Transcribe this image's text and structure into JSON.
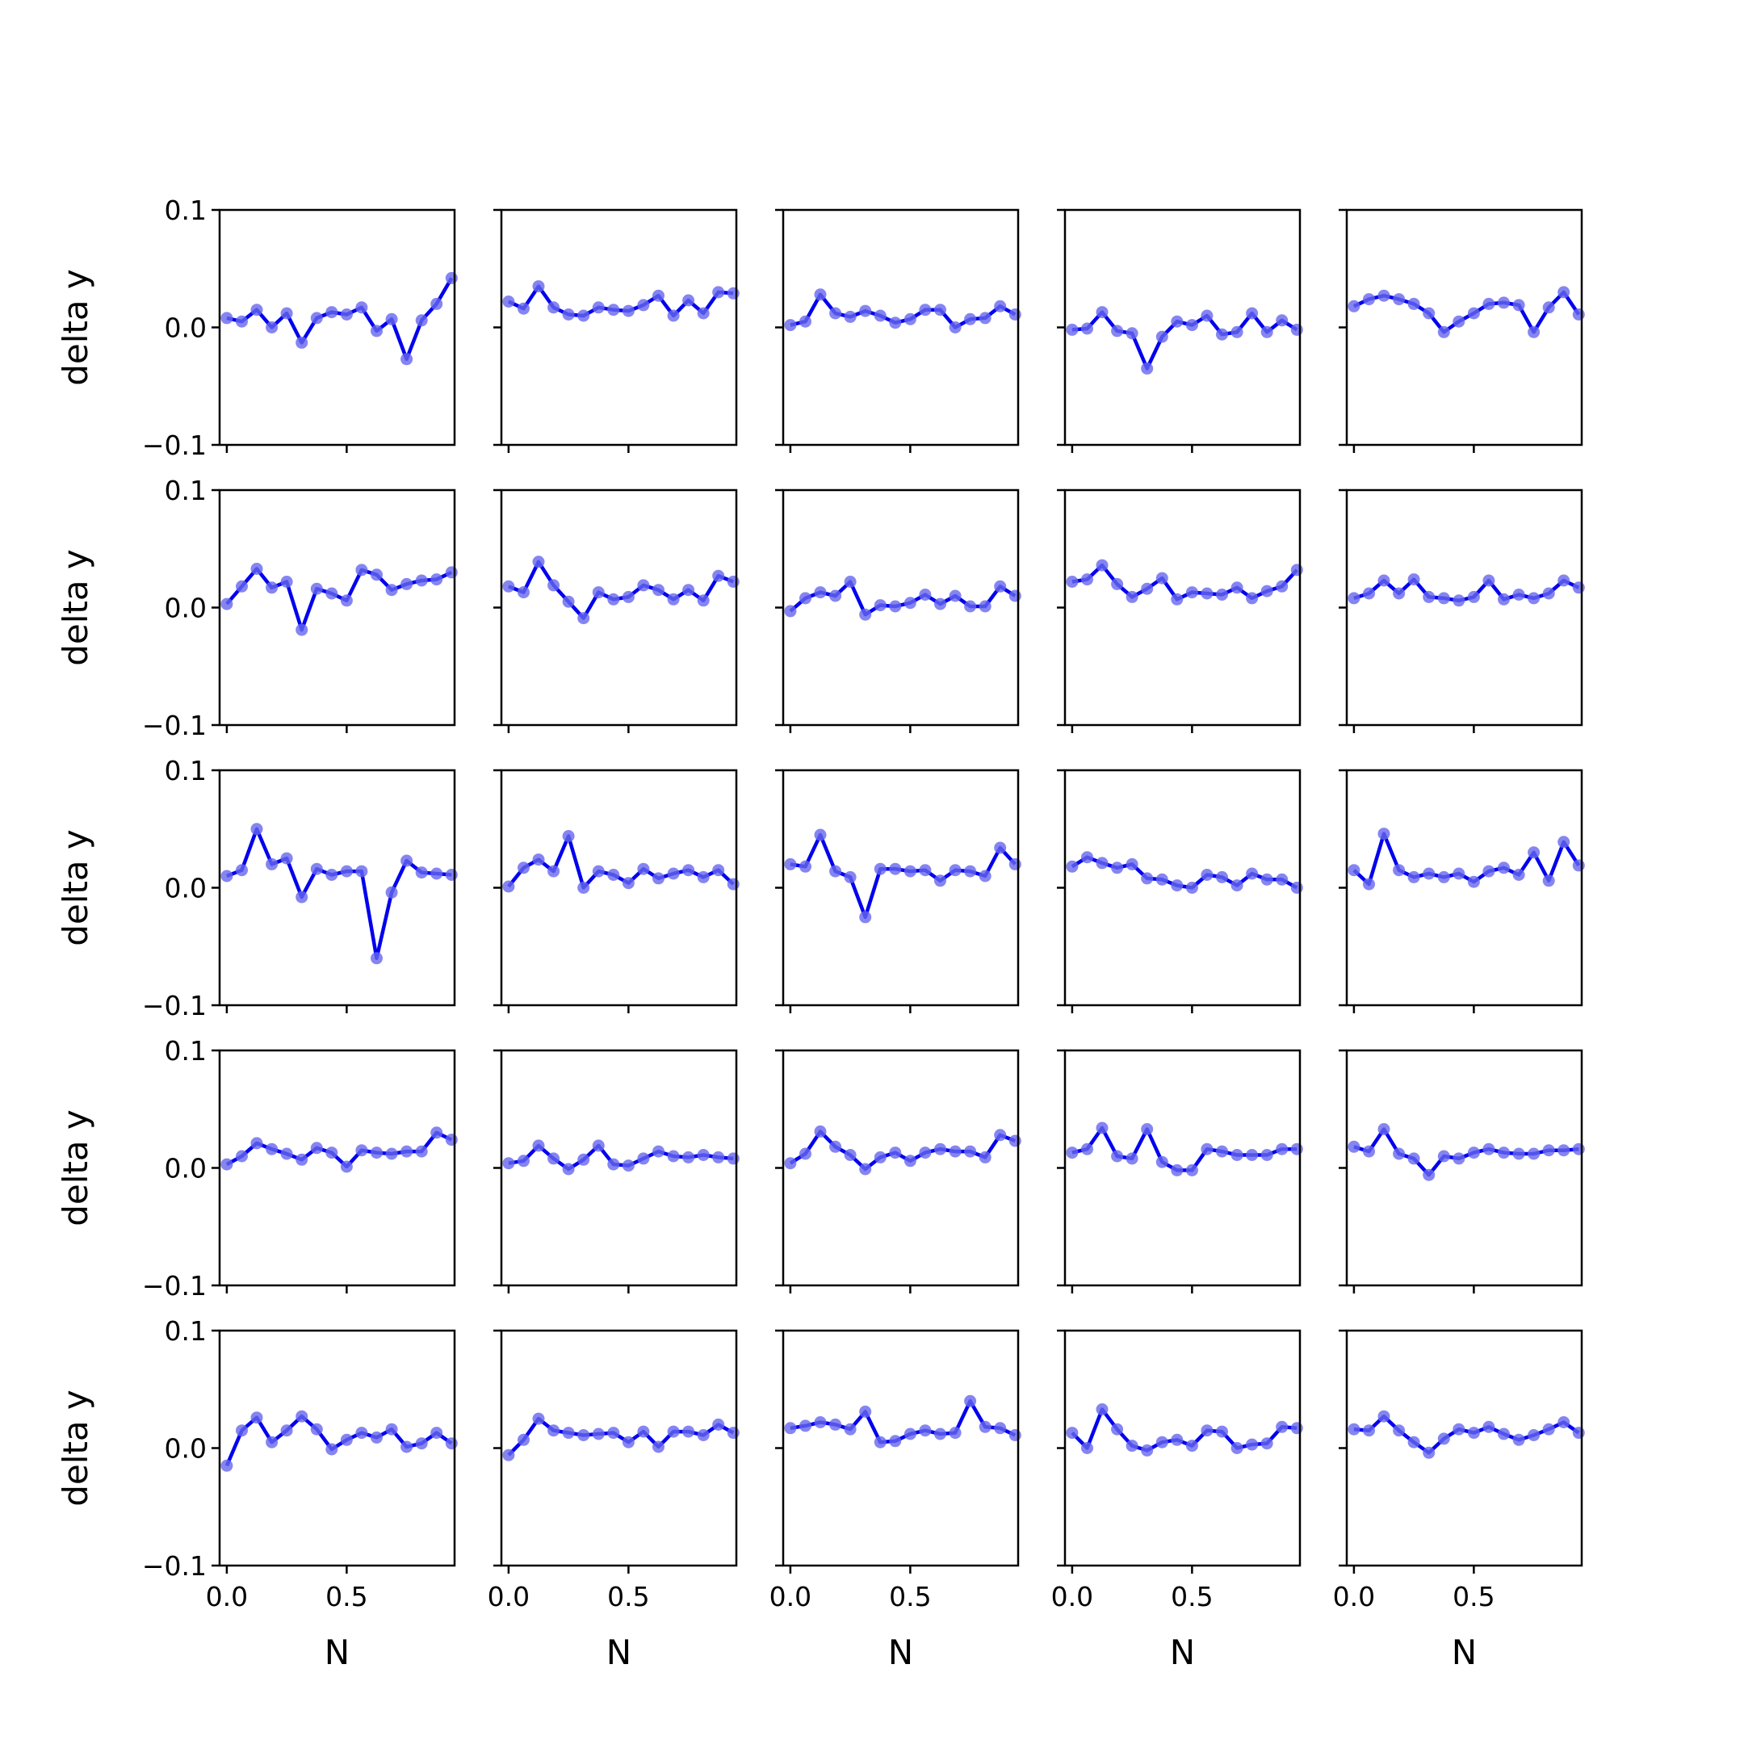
{
  "figure": {
    "rows": 5,
    "cols": 5,
    "line_color": "#0000ee",
    "marker_color": "#6666ee",
    "background": "#ffffff"
  },
  "chart_data": {
    "type": "line",
    "layout": "5x5 grid of small line plots with markers, shared axes",
    "xlabel": "N",
    "ylabel": "delta y",
    "xlim": [
      -0.03,
      0.95
    ],
    "ylim": [
      -0.1,
      0.1
    ],
    "xticks": [
      0.0,
      0.5
    ],
    "xtick_labels": [
      "0.0",
      "0.5"
    ],
    "yticks": [
      -0.1,
      0.0,
      0.1
    ],
    "ytick_labels": [
      "−0.1",
      "0.0",
      "0.1"
    ],
    "grid": false,
    "legend": false,
    "x": [
      0.0,
      0.0625,
      0.125,
      0.1875,
      0.25,
      0.3125,
      0.375,
      0.4375,
      0.5,
      0.5625,
      0.625,
      0.6875,
      0.75,
      0.8125,
      0.875,
      0.9375
    ],
    "panels": [
      {
        "row": 0,
        "col": 0,
        "y": [
          0.008,
          0.005,
          0.015,
          0.0,
          0.012,
          -0.013,
          0.008,
          0.013,
          0.011,
          0.017,
          -0.003,
          0.007,
          -0.027,
          0.006,
          0.02,
          0.042
        ]
      },
      {
        "row": 0,
        "col": 1,
        "y": [
          0.022,
          0.016,
          0.035,
          0.017,
          0.011,
          0.01,
          0.017,
          0.015,
          0.014,
          0.019,
          0.027,
          0.01,
          0.023,
          0.012,
          0.03,
          0.029
        ]
      },
      {
        "row": 0,
        "col": 2,
        "y": [
          0.002,
          0.005,
          0.028,
          0.012,
          0.009,
          0.014,
          0.01,
          0.004,
          0.007,
          0.015,
          0.015,
          0.0,
          0.007,
          0.008,
          0.018,
          0.011
        ]
      },
      {
        "row": 0,
        "col": 3,
        "y": [
          -0.002,
          -0.001,
          0.013,
          -0.003,
          -0.005,
          -0.035,
          -0.008,
          0.005,
          0.002,
          0.01,
          -0.006,
          -0.004,
          0.012,
          -0.004,
          0.006,
          -0.002
        ]
      },
      {
        "row": 0,
        "col": 4,
        "y": [
          0.018,
          0.024,
          0.027,
          0.024,
          0.02,
          0.012,
          -0.004,
          0.005,
          0.012,
          0.02,
          0.021,
          0.019,
          -0.004,
          0.017,
          0.03,
          0.011
        ]
      },
      {
        "row": 1,
        "col": 0,
        "y": [
          0.003,
          0.018,
          0.033,
          0.017,
          0.022,
          -0.019,
          0.016,
          0.012,
          0.006,
          0.032,
          0.028,
          0.015,
          0.02,
          0.023,
          0.024,
          0.03
        ]
      },
      {
        "row": 1,
        "col": 1,
        "y": [
          0.018,
          0.013,
          0.039,
          0.019,
          0.005,
          -0.009,
          0.013,
          0.007,
          0.009,
          0.019,
          0.015,
          0.007,
          0.015,
          0.006,
          0.027,
          0.022
        ]
      },
      {
        "row": 1,
        "col": 2,
        "y": [
          -0.003,
          0.008,
          0.013,
          0.01,
          0.022,
          -0.006,
          0.002,
          0.001,
          0.004,
          0.011,
          0.003,
          0.01,
          0.001,
          0.001,
          0.018,
          0.01
        ]
      },
      {
        "row": 1,
        "col": 3,
        "y": [
          0.022,
          0.024,
          0.036,
          0.02,
          0.009,
          0.016,
          0.025,
          0.007,
          0.013,
          0.012,
          0.011,
          0.017,
          0.008,
          0.014,
          0.018,
          0.032
        ]
      },
      {
        "row": 1,
        "col": 4,
        "y": [
          0.008,
          0.012,
          0.023,
          0.012,
          0.024,
          0.009,
          0.008,
          0.006,
          0.009,
          0.023,
          0.007,
          0.011,
          0.008,
          0.012,
          0.023,
          0.017
        ]
      },
      {
        "row": 2,
        "col": 0,
        "y": [
          0.01,
          0.015,
          0.05,
          0.02,
          0.025,
          -0.008,
          0.016,
          0.011,
          0.014,
          0.014,
          -0.06,
          -0.004,
          0.023,
          0.013,
          0.012,
          0.011
        ]
      },
      {
        "row": 2,
        "col": 1,
        "y": [
          0.001,
          0.017,
          0.024,
          0.014,
          0.044,
          0.0,
          0.014,
          0.011,
          0.004,
          0.016,
          0.008,
          0.012,
          0.015,
          0.009,
          0.015,
          0.003
        ]
      },
      {
        "row": 2,
        "col": 2,
        "y": [
          0.02,
          0.018,
          0.045,
          0.014,
          0.009,
          -0.025,
          0.016,
          0.016,
          0.014,
          0.015,
          0.006,
          0.015,
          0.014,
          0.01,
          0.034,
          0.02
        ]
      },
      {
        "row": 2,
        "col": 3,
        "y": [
          0.018,
          0.026,
          0.021,
          0.017,
          0.02,
          0.008,
          0.007,
          0.002,
          0.0,
          0.011,
          0.009,
          0.002,
          0.012,
          0.007,
          0.007,
          0.0
        ]
      },
      {
        "row": 2,
        "col": 4,
        "y": [
          0.015,
          0.003,
          0.046,
          0.015,
          0.009,
          0.012,
          0.009,
          0.012,
          0.005,
          0.014,
          0.017,
          0.011,
          0.03,
          0.006,
          0.039,
          0.019
        ]
      },
      {
        "row": 3,
        "col": 0,
        "y": [
          0.003,
          0.01,
          0.021,
          0.016,
          0.012,
          0.007,
          0.017,
          0.013,
          0.001,
          0.015,
          0.013,
          0.012,
          0.014,
          0.014,
          0.03,
          0.024
        ]
      },
      {
        "row": 3,
        "col": 1,
        "y": [
          0.004,
          0.006,
          0.019,
          0.008,
          -0.001,
          0.007,
          0.019,
          0.003,
          0.002,
          0.008,
          0.014,
          0.01,
          0.009,
          0.011,
          0.009,
          0.008
        ]
      },
      {
        "row": 3,
        "col": 2,
        "y": [
          0.004,
          0.012,
          0.031,
          0.018,
          0.011,
          -0.001,
          0.009,
          0.013,
          0.006,
          0.013,
          0.016,
          0.014,
          0.014,
          0.009,
          0.028,
          0.023
        ]
      },
      {
        "row": 3,
        "col": 3,
        "y": [
          0.013,
          0.016,
          0.034,
          0.01,
          0.008,
          0.033,
          0.005,
          -0.002,
          -0.002,
          0.016,
          0.014,
          0.011,
          0.011,
          0.011,
          0.016,
          0.016
        ]
      },
      {
        "row": 3,
        "col": 4,
        "y": [
          0.018,
          0.014,
          0.033,
          0.012,
          0.008,
          -0.006,
          0.01,
          0.008,
          0.013,
          0.016,
          0.013,
          0.012,
          0.012,
          0.015,
          0.015,
          0.016
        ]
      },
      {
        "row": 4,
        "col": 0,
        "y": [
          -0.015,
          0.015,
          0.026,
          0.005,
          0.015,
          0.027,
          0.016,
          -0.001,
          0.007,
          0.013,
          0.009,
          0.016,
          0.001,
          0.004,
          0.013,
          0.004
        ]
      },
      {
        "row": 4,
        "col": 1,
        "y": [
          -0.006,
          0.007,
          0.025,
          0.015,
          0.013,
          0.011,
          0.012,
          0.013,
          0.005,
          0.014,
          0.001,
          0.014,
          0.014,
          0.011,
          0.02,
          0.013
        ]
      },
      {
        "row": 4,
        "col": 2,
        "y": [
          0.017,
          0.019,
          0.022,
          0.02,
          0.016,
          0.031,
          0.005,
          0.006,
          0.012,
          0.015,
          0.012,
          0.013,
          0.04,
          0.018,
          0.017,
          0.011
        ]
      },
      {
        "row": 4,
        "col": 3,
        "y": [
          0.013,
          0.0,
          0.033,
          0.016,
          0.002,
          -0.002,
          0.005,
          0.007,
          0.002,
          0.015,
          0.014,
          0.0,
          0.003,
          0.004,
          0.018,
          0.017
        ]
      },
      {
        "row": 4,
        "col": 4,
        "y": [
          0.016,
          0.015,
          0.027,
          0.015,
          0.005,
          -0.004,
          0.008,
          0.016,
          0.013,
          0.018,
          0.012,
          0.007,
          0.011,
          0.016,
          0.022,
          0.013
        ]
      }
    ]
  }
}
